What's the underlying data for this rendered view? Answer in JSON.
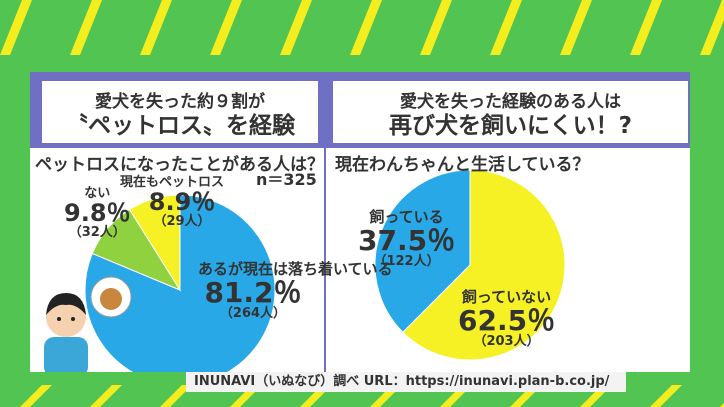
{
  "left": {
    "header_line1": "愛犬を失った約９割が",
    "header_line2": "〝ペットロス〟を経験",
    "question": "ペットロスになったことがある人は？",
    "n": "n＝325"
  },
  "right": {
    "header_line1": "愛犬を失った経験のある人は",
    "header_line2": "再び犬を飼いにくい！?",
    "question": "現在わんちゃんと生活している？"
  },
  "footer": "INUNAVI（いぬなび）調べ  URL：https://inunavi.plan-b.co.jp/",
  "chart_data": [
    {
      "type": "pie",
      "title": "ペットロスになったことがある人は？",
      "categories": [
        "あるが現在は落ち着いている",
        "ない",
        "現在もペットロス"
      ],
      "values": [
        81.2,
        9.8,
        8.9
      ],
      "labels": [
        "81.2％",
        "9.8％",
        "8.9％"
      ],
      "counts": [
        "（264人）",
        "（32人）",
        "（29人）"
      ],
      "colors": [
        "#29a8e8",
        "#8fd13f",
        "#f5f125"
      ]
    },
    {
      "type": "pie",
      "title": "現在わんちゃんと生活している？",
      "categories": [
        "飼っていない",
        "飼っている"
      ],
      "values": [
        62.5,
        37.5
      ],
      "labels": [
        "62.5％",
        "37.5％"
      ],
      "counts": [
        "（203人）",
        "（122人）"
      ],
      "colors": [
        "#f5f125",
        "#29a8e8"
      ]
    }
  ]
}
